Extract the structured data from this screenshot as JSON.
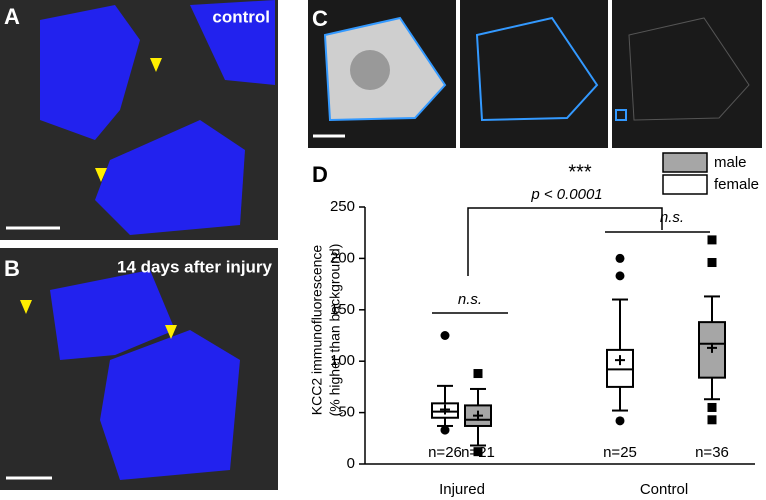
{
  "figure_panels": [
    {
      "letter": "A",
      "caption": "control"
    },
    {
      "letter": "B",
      "caption": "14 days after injury"
    },
    {
      "letter": "C"
    }
  ],
  "chart_data": {
    "type": "box",
    "panel_label": "D",
    "y_label": [
      "KCC2 immunofluorescence",
      "(% higher than background)"
    ],
    "categories": [
      "Injured",
      "Control"
    ],
    "ylim": [
      0,
      250
    ],
    "yticks": [
      0,
      50,
      100,
      150,
      200,
      250
    ],
    "series": [
      {
        "name": "male",
        "color": "#a6a6a6",
        "marker": "square",
        "n_labels": [
          "n=21",
          "n=36"
        ],
        "boxes": [
          {
            "min": 18,
            "q1": 37,
            "median": 43,
            "q3": 57,
            "max": 73,
            "mean": 47,
            "outliers": [
              88,
              12
            ]
          },
          {
            "min": 63,
            "q1": 84,
            "median": 117,
            "q3": 138,
            "max": 163,
            "mean": 113,
            "outliers": [
              218,
              196,
              55,
              43
            ]
          }
        ]
      },
      {
        "name": "female",
        "color": "#ffffff",
        "marker": "circle",
        "n_labels": [
          "n=26",
          "n=25"
        ],
        "boxes": [
          {
            "min": 37,
            "q1": 45,
            "median": 51,
            "q3": 59,
            "max": 76,
            "mean": 53,
            "outliers": [
              125,
              33
            ]
          },
          {
            "min": 52,
            "q1": 75,
            "median": 92,
            "q3": 111,
            "max": 160,
            "mean": 101,
            "outliers": [
              200,
              183,
              42
            ]
          }
        ]
      }
    ],
    "annotations": [
      "***",
      "p < 0.0001",
      "n.s.",
      "n.s."
    ]
  }
}
